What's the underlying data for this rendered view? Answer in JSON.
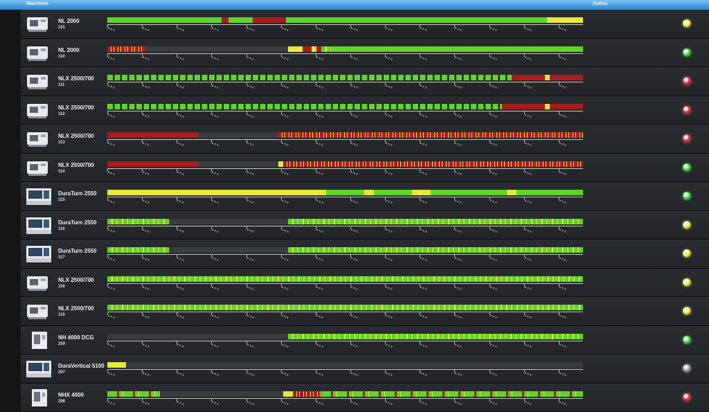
{
  "header": {
    "machines": "Machines",
    "status": "Status"
  },
  "states": {
    "run": "#5fd42a",
    "idle": "#e8e83a",
    "alarm": "#a81c1c",
    "off": "#3a3d40",
    "dash-g": "#5fd42a",
    "mixed-ry": "#a81c1c",
    "mixed-gy": "#5fd42a",
    "mixed-rg": "#5fd42a"
  },
  "status_colors": {
    "green": "#3ee03a",
    "yellow": "#e6f03a",
    "red": "#e8303a",
    "grey": "#9a9ea2"
  },
  "rows": [
    {
      "name": "NL 2000",
      "id": "101",
      "status": "yellow",
      "icon": "lathe",
      "timeline": [
        {
          "state": "run",
          "len": 24
        },
        {
          "state": "alarm",
          "len": 1.5
        },
        {
          "state": "run",
          "len": 5
        },
        {
          "state": "alarm",
          "len": 7
        },
        {
          "state": "run",
          "len": 55
        },
        {
          "state": "idle",
          "len": 7.5
        }
      ]
    },
    {
      "name": "NL 2000",
      "id": "110",
      "status": "green",
      "icon": "lathe",
      "timeline": [
        {
          "state": "mixed-ry",
          "len": 8
        },
        {
          "state": "off",
          "len": 30
        },
        {
          "state": "idle",
          "len": 3
        },
        {
          "state": "alarm",
          "len": 2
        },
        {
          "state": "idle",
          "len": 1
        },
        {
          "state": "alarm",
          "len": 1
        },
        {
          "state": "mixed-gy",
          "len": 2
        },
        {
          "state": "run",
          "len": 53
        }
      ]
    },
    {
      "name": "NLX 2500/700",
      "id": "111",
      "status": "red",
      "icon": "lathe",
      "timeline": [
        {
          "state": "dash-g",
          "len": 85
        },
        {
          "state": "alarm",
          "len": 7
        },
        {
          "state": "idle",
          "len": 1
        },
        {
          "state": "alarm",
          "len": 7
        }
      ]
    },
    {
      "name": "NLX 2500/700",
      "id": "112",
      "status": "red",
      "icon": "lathe",
      "timeline": [
        {
          "state": "dash-g",
          "len": 83
        },
        {
          "state": "alarm",
          "len": 9
        },
        {
          "state": "idle",
          "len": 1
        },
        {
          "state": "alarm",
          "len": 7
        }
      ]
    },
    {
      "name": "NLX 2500/700",
      "id": "113",
      "status": "red",
      "icon": "lathe",
      "timeline": [
        {
          "state": "alarm",
          "len": 19
        },
        {
          "state": "off",
          "len": 17
        },
        {
          "state": "mixed-ry",
          "len": 64
        }
      ]
    },
    {
      "name": "NLX 2500/700",
      "id": "114",
      "status": "green",
      "icon": "lathe",
      "timeline": [
        {
          "state": "alarm",
          "len": 19
        },
        {
          "state": "off",
          "len": 17
        },
        {
          "state": "idle",
          "len": 1
        },
        {
          "state": "mixed-ry",
          "len": 63
        }
      ]
    },
    {
      "name": "DuraTurn 2550",
      "id": "115",
      "status": "green",
      "icon": "cabinet",
      "timeline": [
        {
          "state": "idle",
          "len": 46
        },
        {
          "state": "run",
          "len": 8
        },
        {
          "state": "idle",
          "len": 2
        },
        {
          "state": "run",
          "len": 8
        },
        {
          "state": "idle",
          "len": 4
        },
        {
          "state": "run",
          "len": 16
        },
        {
          "state": "idle",
          "len": 2
        },
        {
          "state": "run",
          "len": 14
        }
      ]
    },
    {
      "name": "DuraTurn 2550",
      "id": "116",
      "status": "yellow",
      "icon": "cabinet",
      "timeline": [
        {
          "state": "mixed-gy",
          "len": 13
        },
        {
          "state": "off",
          "len": 25
        },
        {
          "state": "mixed-gy",
          "len": 62
        }
      ]
    },
    {
      "name": "DuraTurn 2550",
      "id": "117",
      "status": "yellow",
      "icon": "cabinet",
      "timeline": [
        {
          "state": "mixed-gy",
          "len": 13
        },
        {
          "state": "off",
          "len": 25
        },
        {
          "state": "mixed-gy",
          "len": 62
        }
      ]
    },
    {
      "name": "NLX 2500/700",
      "id": "118",
      "status": "yellow",
      "icon": "lathe",
      "timeline": [
        {
          "state": "mixed-gy",
          "len": 100
        }
      ]
    },
    {
      "name": "NLX 2500/700",
      "id": "119",
      "status": "yellow",
      "icon": "lathe",
      "timeline": [
        {
          "state": "mixed-gy",
          "len": 100
        }
      ]
    },
    {
      "name": "NH 4000 DCG",
      "id": "200",
      "status": "green",
      "icon": "tower",
      "timeline": [
        {
          "state": "off",
          "len": 38
        },
        {
          "state": "mixed-gy",
          "len": 62
        }
      ]
    },
    {
      "name": "DuraVertical 5100",
      "id": "207",
      "status": "grey",
      "icon": "cabinet",
      "timeline": [
        {
          "state": "idle",
          "len": 4
        },
        {
          "state": "off",
          "len": 96
        }
      ]
    },
    {
      "name": "NHX 4000",
      "id": "208",
      "status": "red",
      "icon": "tower",
      "timeline": [
        {
          "state": "mixed-rg",
          "len": 11
        },
        {
          "state": "off",
          "len": 26
        },
        {
          "state": "idle",
          "len": 2
        },
        {
          "state": "mixed-ry",
          "len": 6
        },
        {
          "state": "mixed-rg",
          "len": 55
        }
      ]
    }
  ]
}
